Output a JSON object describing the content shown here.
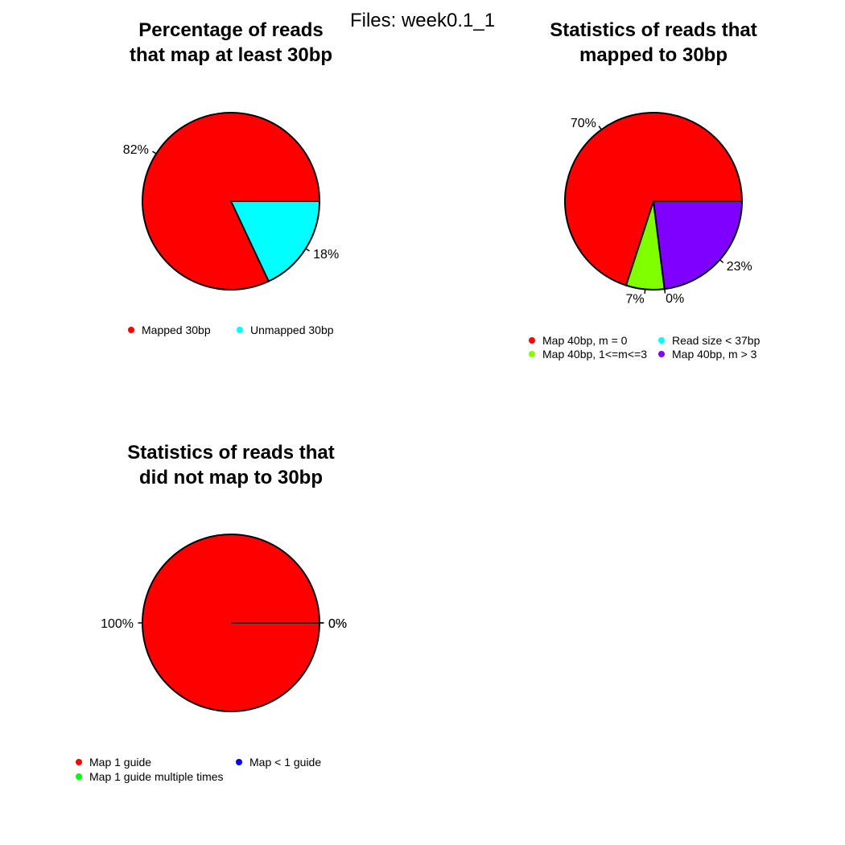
{
  "page_title": "Files: week0.1_1",
  "chart_data": [
    {
      "type": "pie",
      "title_lines": [
        "Percentage of reads",
        "that map at least 30bp"
      ],
      "slices": [
        {
          "label": "Mapped 30bp",
          "value": 82,
          "display": "82%",
          "color": "#FF0000"
        },
        {
          "label": "Unmapped 30bp",
          "value": 18,
          "display": "18%",
          "color": "#00FFFF"
        }
      ],
      "legend": [
        "Mapped 30bp",
        "Unmapped 30bp"
      ]
    },
    {
      "type": "pie",
      "title_lines": [
        "Statistics of reads that",
        "mapped to 30bp"
      ],
      "slices": [
        {
          "label": "Map 40bp, m = 0",
          "value": 70,
          "display": "70%",
          "color": "#FF0000"
        },
        {
          "label": "Map 40bp, 1<=m<=3",
          "value": 7,
          "display": "7%",
          "color": "#80FF00"
        },
        {
          "label": "Read size < 37bp",
          "value": 0,
          "display": "0%",
          "color": "#00FFFF"
        },
        {
          "label": "Map 40bp, m > 3",
          "value": 23,
          "display": "23%",
          "color": "#8000FF"
        }
      ],
      "legend": [
        "Map 40bp, m = 0",
        "Read size < 37bp",
        "Map 40bp, 1<=m<=3",
        "Map 40bp, m > 3"
      ]
    },
    {
      "type": "pie",
      "title_lines": [
        "Statistics of reads that",
        "did not map to 30bp"
      ],
      "slices": [
        {
          "label": "Map 1 guide",
          "value": 100,
          "display": "100%",
          "color": "#FF0000"
        },
        {
          "label": "Map 1 guide multiple times",
          "value": 0,
          "display": "0%",
          "color": "#00FF00"
        },
        {
          "label": "Map < 1 guide",
          "value": 0,
          "display": "0%",
          "color": "#0000FF"
        }
      ],
      "legend": [
        "Map 1 guide",
        "Map < 1 guide",
        "Map 1 guide multiple times"
      ]
    }
  ]
}
